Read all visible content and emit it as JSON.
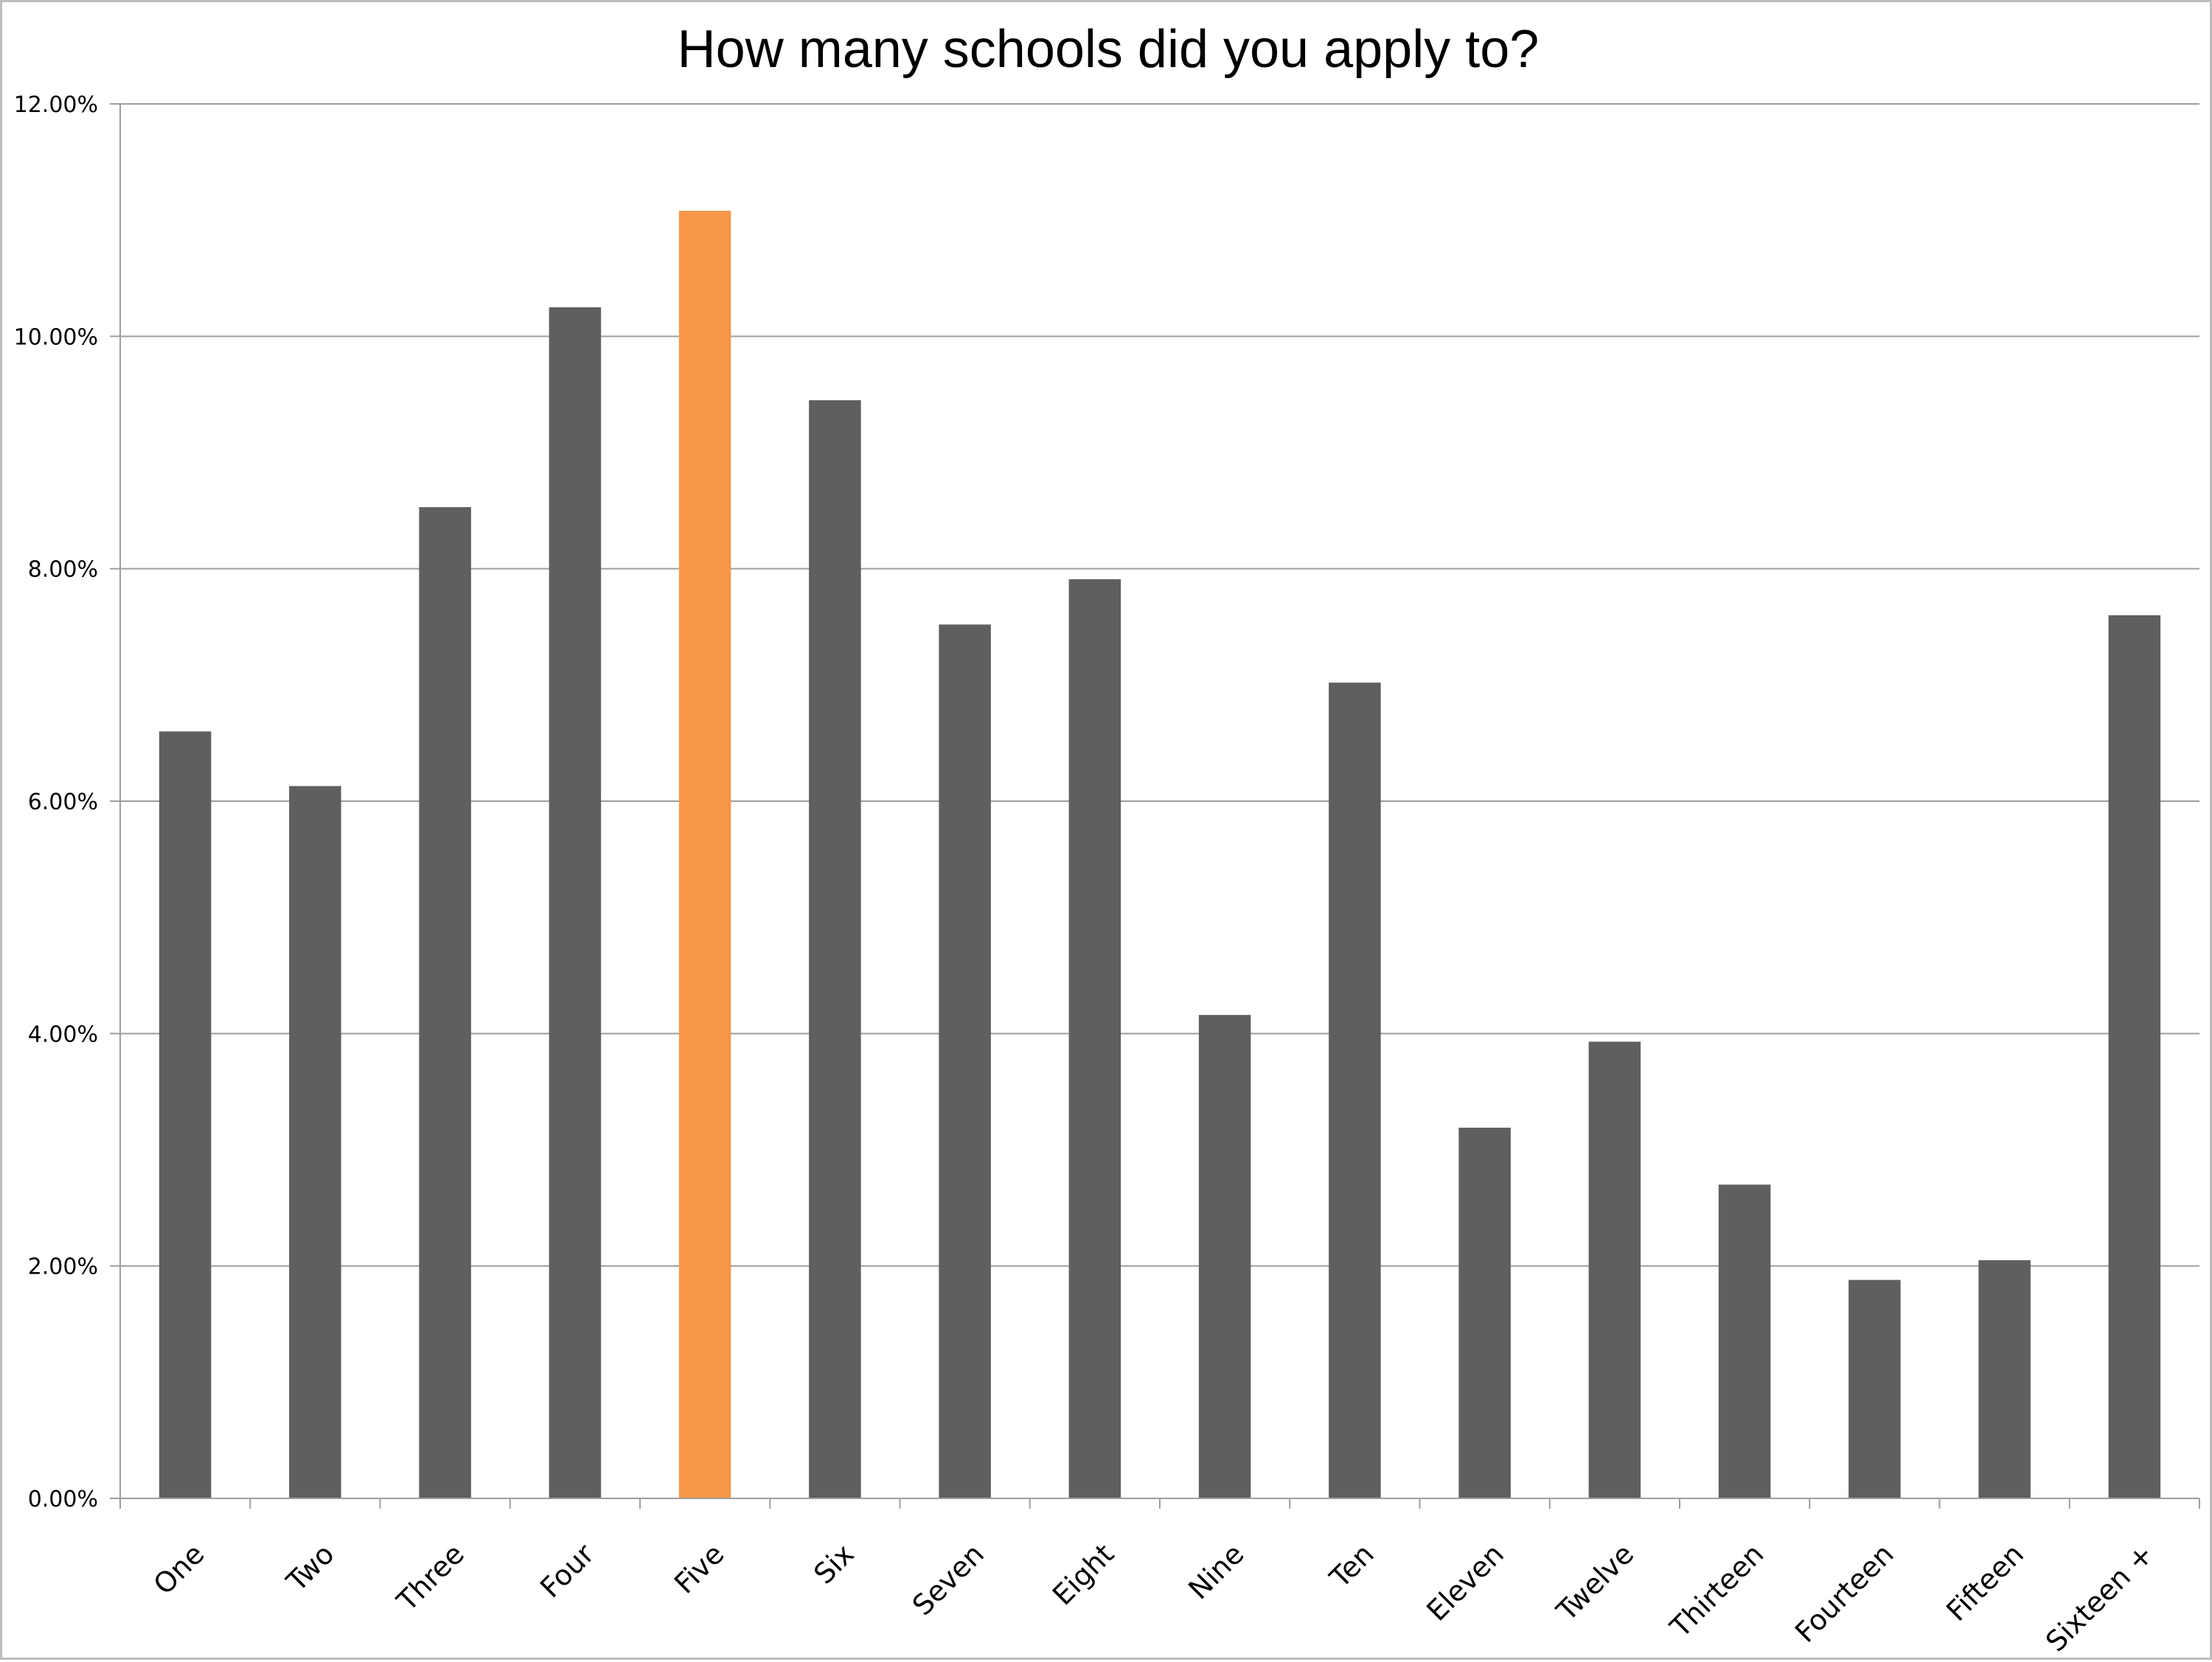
{
  "chart_data": {
    "type": "bar",
    "title": "How many schools did you apply to?",
    "xlabel": "",
    "ylabel": "",
    "ylim": [
      0,
      12
    ],
    "yticks": [
      0,
      2,
      4,
      6,
      8,
      10,
      12
    ],
    "ytick_labels": [
      "0.00%",
      "2.00%",
      "4.00%",
      "6.00%",
      "8.00%",
      "10.00%",
      "12.00%"
    ],
    "grid": true,
    "legend": "none",
    "categories": [
      "One",
      "Two",
      "Three",
      "Four",
      "Five",
      "Six",
      "Seven",
      "Eight",
      "Nine",
      "Ten",
      "Eleven",
      "Twelve",
      "Thirteen",
      "Fourteen",
      "Fifteen",
      "Sixteen +"
    ],
    "values": [
      6.6,
      6.13,
      8.53,
      10.25,
      11.08,
      9.45,
      7.52,
      7.91,
      4.16,
      7.02,
      3.19,
      3.93,
      2.7,
      1.88,
      2.05,
      7.6
    ],
    "units": "%",
    "highlight_index": 4,
    "colors": {
      "bar": "#5f5f5f",
      "highlight": "#f79646",
      "grid": "#9e9e9e",
      "axis": "#9e9e9e"
    }
  }
}
